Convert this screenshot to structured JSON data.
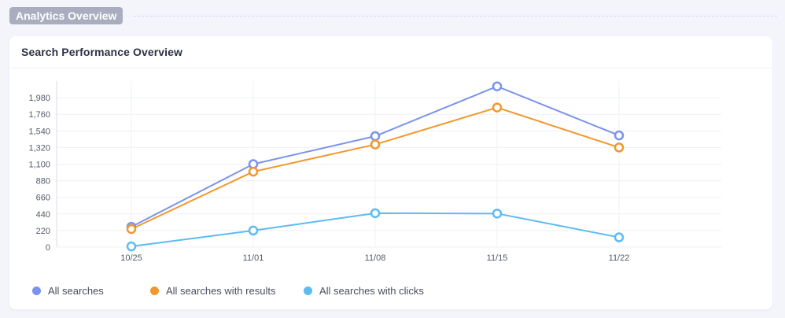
{
  "section": {
    "title": "Analytics Overview"
  },
  "card": {
    "title": "Search Performance Overview"
  },
  "chart_data": {
    "type": "line",
    "title": "Search Performance Overview",
    "xlabel": "",
    "ylabel": "",
    "x": [
      "10/25",
      "11/01",
      "11/08",
      "11/15",
      "11/22"
    ],
    "yticks": [
      0,
      220,
      440,
      660,
      880,
      1100,
      1320,
      1540,
      1760,
      1980
    ],
    "ylim": [
      0,
      2200
    ],
    "grid": true,
    "legend": "bottom-left",
    "series": [
      {
        "name": "All searches",
        "color": "#7b93ec",
        "values": [
          270,
          1100,
          1470,
          2130,
          1480
        ]
      },
      {
        "name": "All searches with results",
        "color": "#f0982d",
        "values": [
          240,
          1000,
          1360,
          1850,
          1320
        ]
      },
      {
        "name": "All searches with clicks",
        "color": "#5cbcf2",
        "values": [
          10,
          220,
          450,
          445,
          130
        ]
      }
    ]
  }
}
